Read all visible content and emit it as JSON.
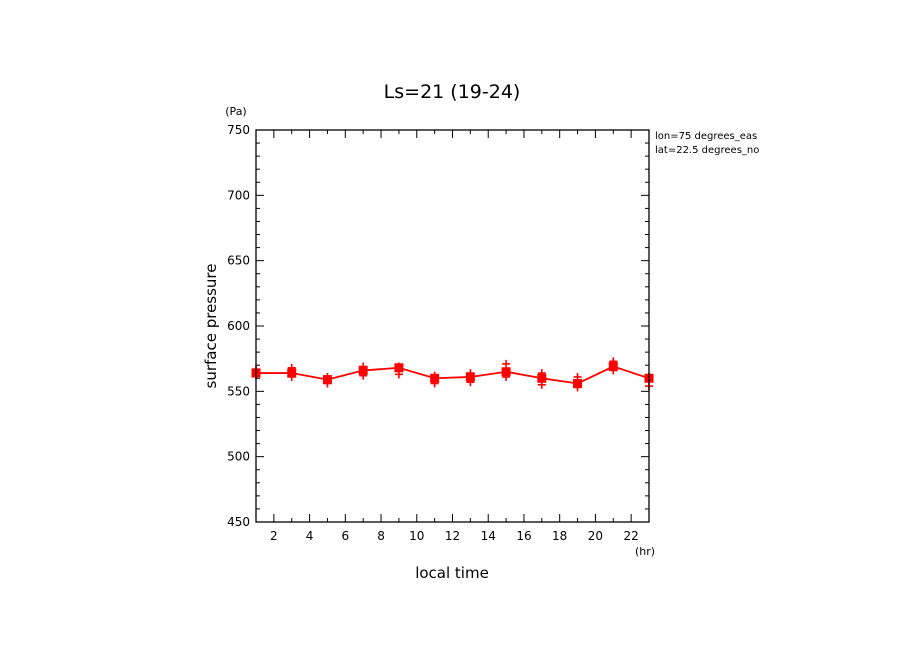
{
  "chart_data": {
    "type": "line",
    "title": "Ls=21 (19-24)",
    "xlabel": "local time",
    "ylabel": "surface pressure",
    "x_unit": "(hr)",
    "y_unit": "(Pa)",
    "xlim": [
      1,
      23
    ],
    "ylim": [
      450,
      750
    ],
    "x_ticks": [
      2,
      4,
      6,
      8,
      10,
      12,
      14,
      16,
      18,
      20,
      22
    ],
    "y_ticks": [
      450,
      500,
      550,
      600,
      650,
      700,
      750
    ],
    "grid": false,
    "annotations": [
      "lon=75 degrees_eas",
      "lat=22.5 degrees_no"
    ],
    "series": [
      {
        "color": "#ff0000",
        "marker": "square",
        "x": [
          1,
          3,
          5,
          7,
          9,
          11,
          13,
          15,
          17,
          19,
          21,
          23
        ],
        "y": [
          564,
          564,
          559,
          566,
          568,
          560,
          561,
          565,
          560,
          556,
          569,
          560
        ]
      }
    ],
    "scatter_points": {
      "marker": "plus",
      "color": "#ff0000",
      "x": [
        1,
        1,
        3,
        3,
        5,
        5,
        7,
        7,
        9,
        9,
        11,
        11,
        13,
        13,
        15,
        15,
        17,
        17,
        19,
        19,
        21,
        21,
        23,
        23
      ],
      "y": [
        567,
        562,
        568,
        561,
        561,
        556,
        569,
        562,
        569,
        563,
        562,
        556,
        564,
        557,
        571,
        561,
        564,
        555,
        561,
        553,
        573,
        566,
        561,
        554
      ]
    }
  }
}
